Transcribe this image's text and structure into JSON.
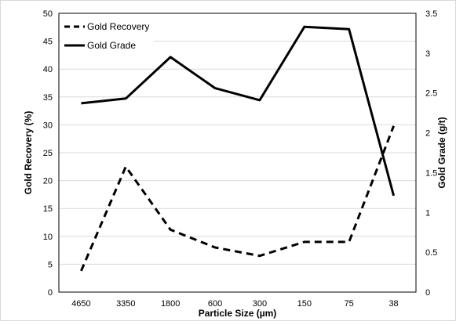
{
  "chart_data": {
    "type": "line",
    "categories": [
      "4650",
      "3350",
      "1800",
      "600",
      "300",
      "150",
      "75",
      "38"
    ],
    "xlabel": "Particle Size (µm)",
    "ylabel": "Gold Recovery (%)",
    "y2label": "Gold Grade (g/t)",
    "ylim": [
      0,
      50
    ],
    "y2lim": [
      0,
      3.5
    ],
    "yticks": [
      "0",
      "5",
      "10",
      "15",
      "20",
      "25",
      "30",
      "35",
      "40",
      "45",
      "50"
    ],
    "y2ticks": [
      "0",
      "0.5",
      "1",
      "1.5",
      "2",
      "2.5",
      "3",
      "3.5"
    ],
    "grid": true,
    "legend_position": "top-left",
    "series": [
      {
        "name": "Gold Recovery",
        "axis": "left",
        "style": "dashed",
        "color": "#000000",
        "values": [
          3.8,
          22.5,
          11.2,
          8.0,
          6.5,
          9.0,
          9.0,
          29.8
        ]
      },
      {
        "name": "Gold Grade",
        "axis": "right",
        "style": "solid",
        "color": "#000000",
        "values": [
          2.37,
          2.43,
          2.95,
          2.56,
          2.41,
          3.33,
          3.3,
          1.21
        ]
      }
    ]
  }
}
